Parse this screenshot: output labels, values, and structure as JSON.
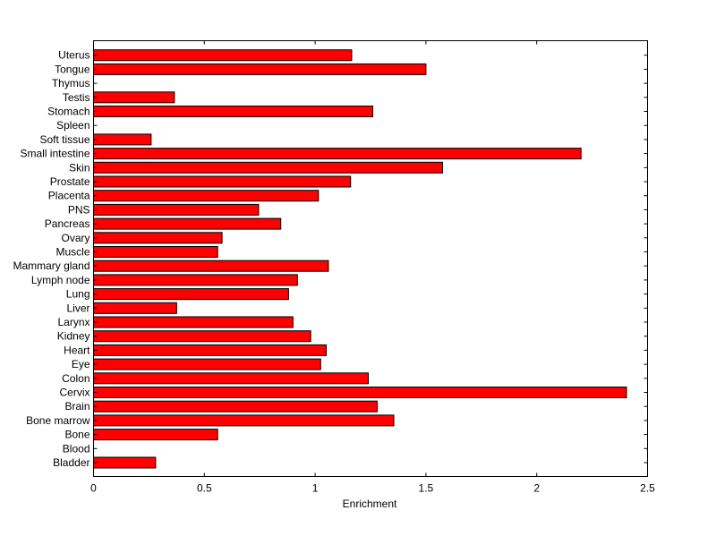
{
  "chart_data": {
    "type": "bar",
    "orientation": "horizontal",
    "categories": [
      "Bladder",
      "Blood",
      "Bone",
      "Bone marrow",
      "Brain",
      "Cervix",
      "Colon",
      "Eye",
      "Heart",
      "Kidney",
      "Larynx",
      "Liver",
      "Lung",
      "Lymph node",
      "Mammary gland",
      "Muscle",
      "Ovary",
      "Pancreas",
      "PNS",
      "Placenta",
      "Prostate",
      "Skin",
      "Small intestine",
      "Soft tissue",
      "Spleen",
      "Stomach",
      "Testis",
      "Thymus",
      "Tongue",
      "Uterus"
    ],
    "values": [
      0.28,
      0,
      0.56,
      1.355,
      1.28,
      2.405,
      1.24,
      1.025,
      1.05,
      0.98,
      0.9,
      0.375,
      0.88,
      0.92,
      1.06,
      0.56,
      0.58,
      0.845,
      0.745,
      1.015,
      1.16,
      1.575,
      2.2,
      0.26,
      0,
      1.26,
      0.365,
      0,
      1.5,
      1.165
    ],
    "xlabel": "Enrichment",
    "ylabel": "",
    "title": "",
    "xlim": [
      0,
      2.5
    ],
    "xticks": [
      "0",
      "0.5",
      "1",
      "1.5",
      "2",
      "2.5"
    ],
    "grid": false,
    "colors": {
      "bar": "#ff0000",
      "edge": "#000000"
    }
  }
}
